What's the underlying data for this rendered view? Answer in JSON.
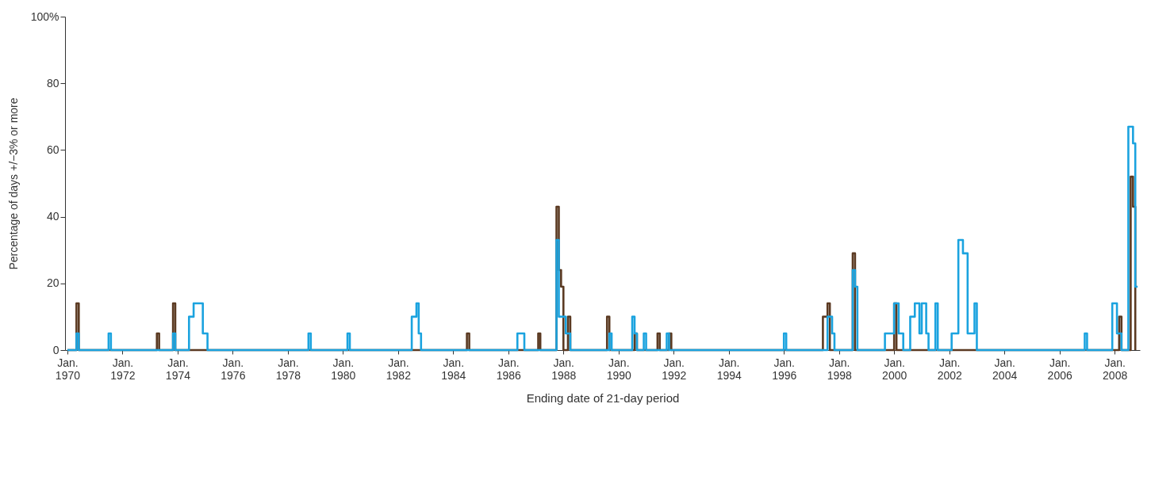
{
  "chart_data": {
    "type": "step",
    "xlabel": "Ending date of 21-day period",
    "ylabel": "Percentage of days +/−3% or more",
    "xlim": [
      "1969-12",
      "2008-12"
    ],
    "xticks": [
      {
        "value": "1970-01",
        "label": "Jan. 1970"
      },
      {
        "value": "1972-01",
        "label": "Jan. 1972"
      },
      {
        "value": "1974-01",
        "label": "Jan. 1974"
      },
      {
        "value": "1976-01",
        "label": "Jan. 1976"
      },
      {
        "value": "1978-01",
        "label": "Jan. 1978"
      },
      {
        "value": "1980-01",
        "label": "Jan. 1980"
      },
      {
        "value": "1982-01",
        "label": "Jan. 1982"
      },
      {
        "value": "1984-01",
        "label": "Jan. 1984"
      },
      {
        "value": "1986-01",
        "label": "Jan. 1986"
      },
      {
        "value": "1988-01",
        "label": "Jan. 1988"
      },
      {
        "value": "1990-01",
        "label": "Jan. 1990"
      },
      {
        "value": "1992-01",
        "label": "Jan. 1992"
      },
      {
        "value": "1994-01",
        "label": "Jan. 1994"
      },
      {
        "value": "1996-01",
        "label": "Jan. 1996"
      },
      {
        "value": "1998-01",
        "label": "Jan. 1998"
      },
      {
        "value": "2000-01",
        "label": "Jan. 2000"
      },
      {
        "value": "2002-01",
        "label": "Jan. 2002"
      },
      {
        "value": "2004-01",
        "label": "Jan. 2004"
      },
      {
        "value": "2006-01",
        "label": "Jan. 2006"
      },
      {
        "value": "2008-01",
        "label": "Jan. 2008"
      }
    ],
    "ylim": [
      0,
      100
    ],
    "grid": false,
    "yticks": [
      0,
      20,
      40,
      60,
      80,
      {
        "value": 100,
        "label": "100%"
      }
    ],
    "series": [
      {
        "color": "#5b3a22",
        "x": [
          "1970-01",
          "1970-05",
          "1970-06",
          "1973-04",
          "1973-05",
          "1973-11",
          "1973-12",
          "1984-07",
          "1984-08",
          "1987-02",
          "1987-03",
          "1987-10",
          "1987-11",
          "1987-12",
          "1988-01",
          "1988-03",
          "1988-04",
          "1989-08",
          "1989-09",
          "1990-08",
          "1990-09",
          "1991-06",
          "1991-07",
          "1991-11",
          "1991-12",
          "1997-06",
          "1997-08",
          "1997-09",
          "1998-07",
          "1998-08",
          "2000-01",
          "2000-02",
          "2008-03",
          "2008-04",
          "2008-08",
          "2008-09",
          "2008-10"
        ],
        "values": [
          0,
          14,
          0,
          5,
          0,
          14,
          0,
          5,
          0,
          5,
          0,
          43,
          24,
          19,
          0,
          10,
          0,
          10,
          0,
          5,
          0,
          5,
          0,
          5,
          0,
          10,
          14,
          0,
          29,
          0,
          14,
          0,
          10,
          0,
          52,
          43,
          0
        ]
      },
      {
        "color": "#1ba3df",
        "x": [
          "1970-01",
          "1970-05",
          "1970-06",
          "1971-07",
          "1971-08",
          "1973-11",
          "1973-12",
          "1974-06",
          "1974-08",
          "1974-10",
          "1974-12",
          "1975-02",
          "1978-10",
          "1978-11",
          "1980-03",
          "1980-04",
          "1982-07",
          "1982-09",
          "1982-10",
          "1982-11",
          "1986-05",
          "1986-08",
          "1987-10",
          "1987-11",
          "1988-02",
          "1988-04",
          "1989-09",
          "1989-10",
          "1990-07",
          "1990-08",
          "1990-09",
          "1990-12",
          "1991-01",
          "1991-10",
          "1991-11",
          "1996-01",
          "1996-02",
          "1997-08",
          "1997-10",
          "1997-11",
          "1998-07",
          "1998-08",
          "1998-09",
          "1999-09",
          "2000-01",
          "2000-03",
          "2000-05",
          "2000-08",
          "2000-10",
          "2000-12",
          "2001-01",
          "2001-03",
          "2001-04",
          "2001-07",
          "2001-08",
          "2002-02",
          "2002-05",
          "2002-07",
          "2002-09",
          "2002-12",
          "2003-01",
          "2006-12",
          "2007-01",
          "2007-12",
          "2008-02",
          "2008-04",
          "2008-07",
          "2008-09",
          "2008-10",
          "2008-11"
        ],
        "values": [
          0,
          5,
          0,
          5,
          0,
          5,
          0,
          10,
          14,
          14,
          5,
          0,
          5,
          0,
          5,
          0,
          10,
          14,
          5,
          0,
          5,
          0,
          33,
          10,
          5,
          0,
          5,
          0,
          10,
          5,
          0,
          5,
          0,
          5,
          0,
          5,
          0,
          10,
          5,
          0,
          24,
          19,
          0,
          5,
          14,
          5,
          0,
          10,
          14,
          5,
          14,
          5,
          0,
          14,
          0,
          5,
          33,
          29,
          5,
          14,
          0,
          5,
          0,
          14,
          5,
          0,
          67,
          62,
          19,
          19
        ]
      }
    ]
  }
}
